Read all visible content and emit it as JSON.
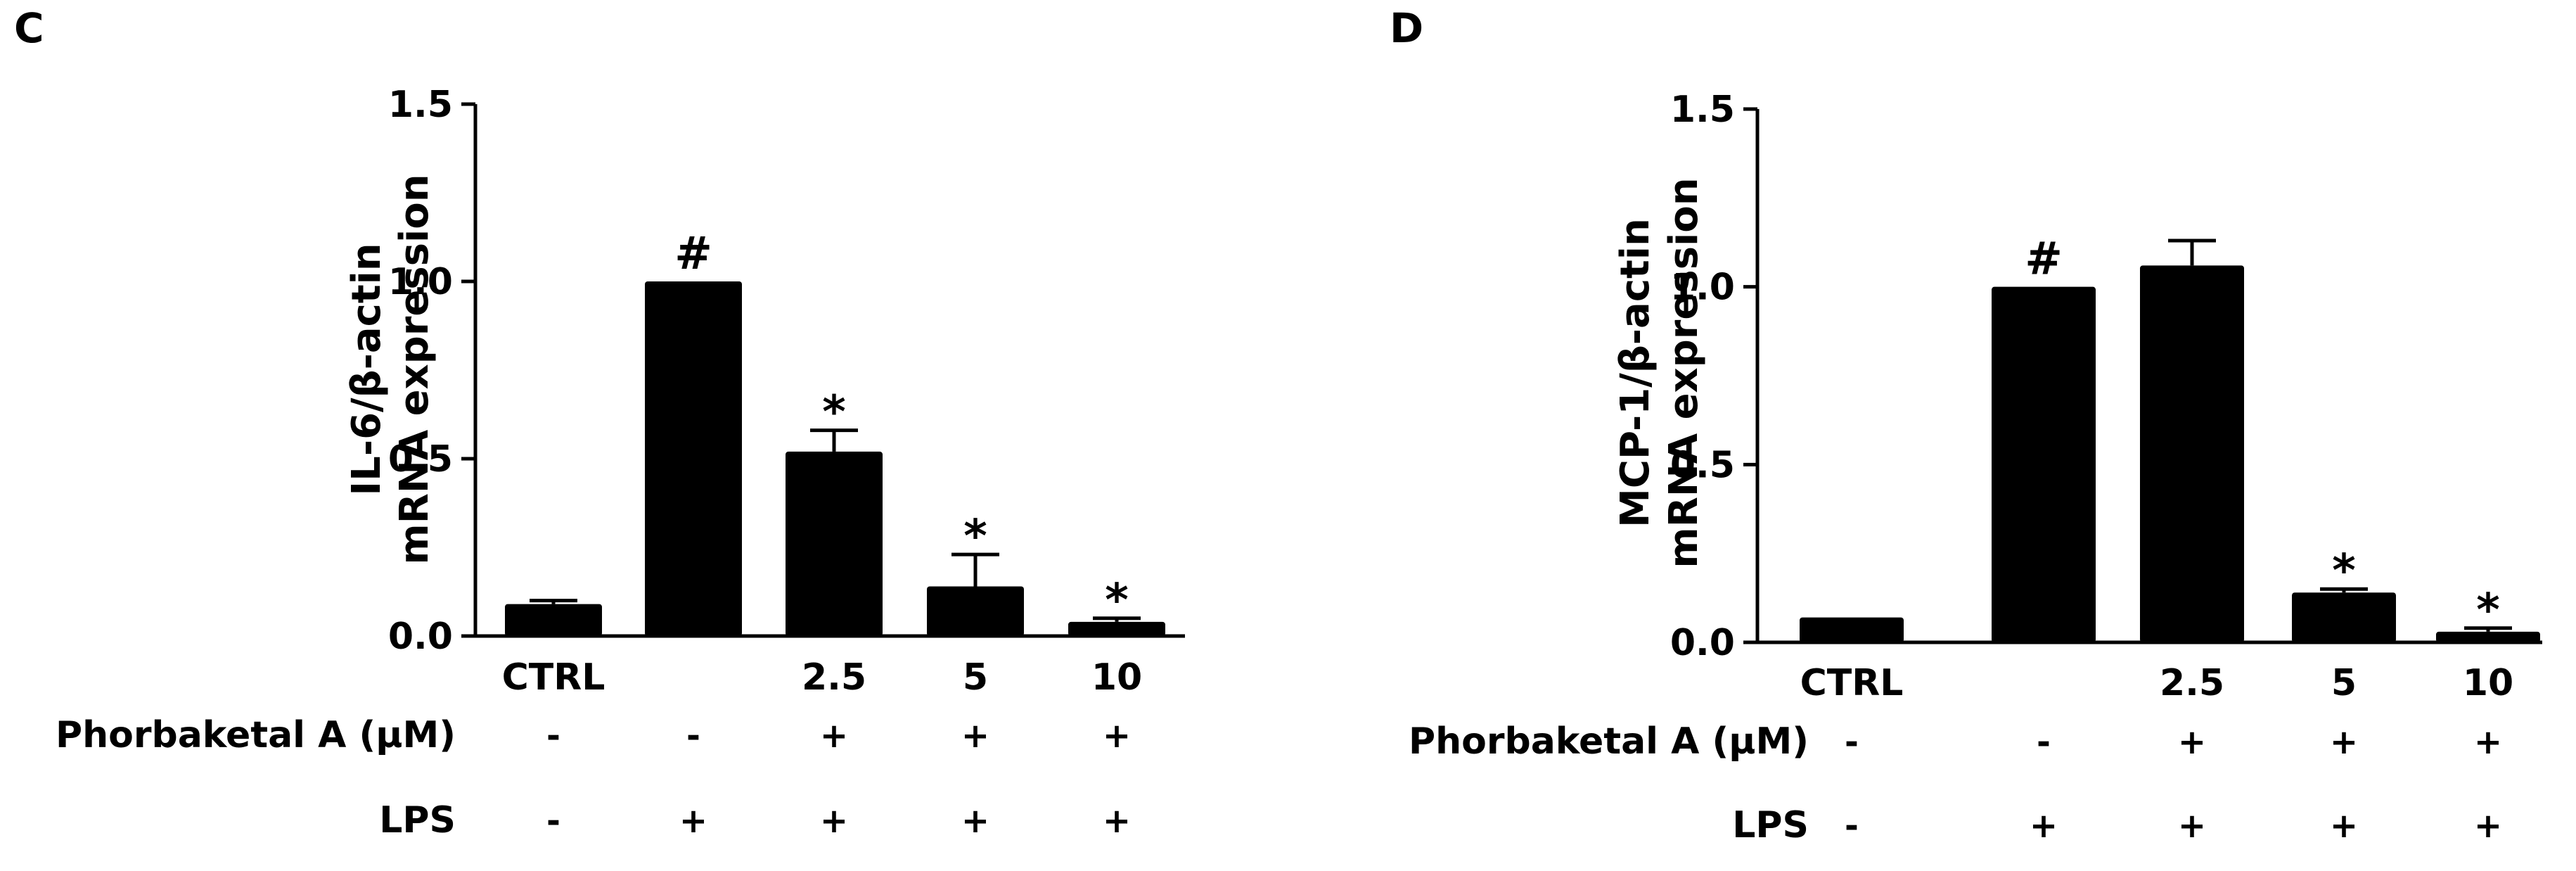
{
  "chart_data": [
    {
      "panel": "C",
      "type": "bar",
      "ylabel_lines": [
        "IL-6/β-actin",
        "mRNA expression"
      ],
      "ylim": [
        0,
        1.5
      ],
      "yticks": [
        "0.0",
        "0.5",
        "1.0",
        "1.5"
      ],
      "categories": [
        "CTRL",
        "",
        "2.5",
        "5",
        "10"
      ],
      "values": [
        0.09,
        1.0,
        0.52,
        0.14,
        0.04
      ],
      "errors": [
        0.01,
        0.0,
        0.06,
        0.09,
        0.01
      ],
      "annotations": [
        "",
        "#",
        "*",
        "*",
        "*"
      ],
      "condition_rows": [
        {
          "label": "Phorbaketal A (μM)",
          "signs": [
            "-",
            "-",
            "+",
            "+",
            "+"
          ]
        },
        {
          "label": "LPS",
          "signs": [
            "-",
            "+",
            "+",
            "+",
            "+"
          ]
        }
      ]
    },
    {
      "panel": "D",
      "type": "bar",
      "ylabel_lines": [
        "MCP-1/β-actin",
        "mRNA expression"
      ],
      "ylim": [
        0,
        1.5
      ],
      "yticks": [
        "0.0",
        "0.5",
        "1.0",
        "1.5"
      ],
      "categories": [
        "CTRL",
        "",
        "2.5",
        "5",
        "10"
      ],
      "values": [
        0.07,
        1.0,
        1.06,
        0.14,
        0.03
      ],
      "errors": [
        0.0,
        0.0,
        0.07,
        0.01,
        0.01
      ],
      "annotations": [
        "",
        "#",
        "",
        "*",
        "*"
      ],
      "condition_rows": [
        {
          "label": "Phorbaketal A (μM)",
          "signs": [
            "-",
            "-",
            "+",
            "+",
            "+"
          ]
        },
        {
          "label": "LPS",
          "signs": [
            "-",
            "+",
            "+",
            "+",
            "+"
          ]
        }
      ]
    }
  ]
}
